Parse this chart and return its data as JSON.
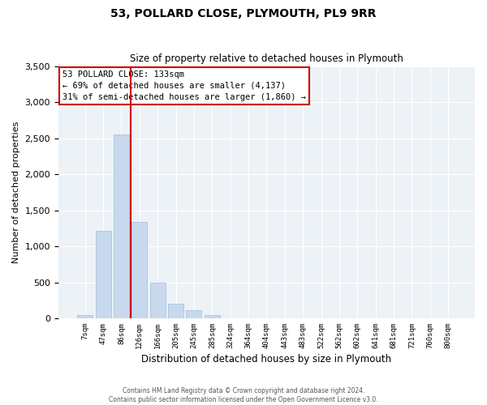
{
  "title": "53, POLLARD CLOSE, PLYMOUTH, PL9 9RR",
  "subtitle": "Size of property relative to detached houses in Plymouth",
  "xlabel": "Distribution of detached houses by size in Plymouth",
  "ylabel": "Number of detached properties",
  "categories": [
    "7sqm",
    "47sqm",
    "86sqm",
    "126sqm",
    "166sqm",
    "205sqm",
    "245sqm",
    "285sqm",
    "324sqm",
    "364sqm",
    "404sqm",
    "443sqm",
    "483sqm",
    "522sqm",
    "562sqm",
    "602sqm",
    "641sqm",
    "681sqm",
    "721sqm",
    "760sqm",
    "800sqm"
  ],
  "values": [
    50,
    1220,
    2560,
    1340,
    490,
    200,
    110,
    40,
    5,
    0,
    0,
    0,
    0,
    0,
    0,
    0,
    0,
    0,
    0,
    0,
    0
  ],
  "bar_color": "#c8d9ed",
  "bar_edge_color": "#a8c4e0",
  "vline_color": "#cc0000",
  "vline_pos": 2.5,
  "ylim": [
    0,
    3500
  ],
  "yticks": [
    0,
    500,
    1000,
    1500,
    2000,
    2500,
    3000,
    3500
  ],
  "annotation_title": "53 POLLARD CLOSE: 133sqm",
  "annotation_line2": "← 69% of detached houses are smaller (4,137)",
  "annotation_line3": "31% of semi-detached houses are larger (1,860) →",
  "annotation_box_color": "#ffffff",
  "annotation_box_edge": "#cc0000",
  "footer_line1": "Contains HM Land Registry data © Crown copyright and database right 2024.",
  "footer_line2": "Contains public sector information licensed under the Open Government Licence v3.0.",
  "plot_background": "#edf2f7"
}
